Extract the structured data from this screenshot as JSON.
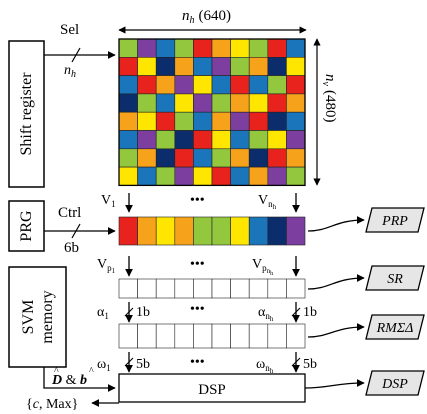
{
  "labels": {
    "shift_register": "Shift register",
    "prg": "PRG",
    "svm_memory_line1": "SVM",
    "svm_memory_line2": "memory",
    "sel": "Sel",
    "n_h_sel": "n",
    "n_h_sel_sub": "h",
    "top_dim_var": "n",
    "top_dim_sub": "h",
    "top_dim_val": "(640)",
    "right_dim_var": "n",
    "right_dim_sub": "v",
    "right_dim_val": "(480)",
    "ctrl": "Ctrl",
    "six_b": "6b",
    "v1": "V",
    "v1_sub": "1",
    "vnh": "V",
    "vnh_sub": "n",
    "vnh_subsub": "h",
    "vp1": "V",
    "vp1_sub": "p",
    "vp1_subsub": "1",
    "vpnh": "V",
    "vpnh_sub": "p",
    "vpnh_subsub": "n",
    "vpnh_subsubsub": "h",
    "alpha1": "α",
    "alpha1_sub": "1",
    "alpha_nh": "α",
    "alpha_nh_sub": "n",
    "alpha_nh_subsub": "h",
    "one_b_left": "1b",
    "one_b_right": "1b",
    "omega1": "ω",
    "omega1_sub": "1",
    "omega_nh": "ω",
    "omega_nh_sub": "n",
    "omega_nh_subsub": "h",
    "five_b_left": "5b",
    "five_b_right": "5b",
    "d_hat": "D",
    "b_hat": "b",
    "amp": " & ",
    "c_max": "{c, Max}",
    "c_max_open": "{",
    "c_max_c": "c",
    "c_max_rest": ", Max}",
    "dsp_block": "DSP",
    "ellipsis": "•••"
  },
  "outputs": {
    "prp": "PRP",
    "sr": "SR",
    "rmsd": "RMΣΔ",
    "dsp": "DSP"
  },
  "colors": {
    "red": "#e8231e",
    "orange": "#f7a21b",
    "yellow": "#ffe600",
    "green": "#93c83e",
    "blue": "#1b75bb",
    "navy": "#0b2d6b",
    "purple": "#7c3fa0",
    "output_fill": "#e6e6e6"
  },
  "pixel_grid": [
    [
      "green",
      "purple",
      "blue",
      "green",
      "red",
      "orange",
      "yellow",
      "green",
      "red",
      "blue"
    ],
    [
      "red",
      "yellow",
      "navy",
      "orange",
      "blue",
      "purple",
      "green",
      "orange",
      "navy",
      "yellow"
    ],
    [
      "blue",
      "red",
      "orange",
      "purple",
      "yellow",
      "blue",
      "red",
      "blue",
      "green",
      "red"
    ],
    [
      "navy",
      "green",
      "blue",
      "yellow",
      "purple",
      "green",
      "orange",
      "yellow",
      "red",
      "orange"
    ],
    [
      "orange",
      "yellow",
      "red",
      "green",
      "blue",
      "orange",
      "purple",
      "red",
      "navy",
      "blue"
    ],
    [
      "blue",
      "purple",
      "green",
      "navy",
      "red",
      "yellow",
      "blue",
      "green",
      "yellow",
      "purple"
    ],
    [
      "green",
      "orange",
      "navy",
      "red",
      "blue",
      "green",
      "orange",
      "navy",
      "red",
      "orange"
    ],
    [
      "yellow",
      "blue",
      "green",
      "purple",
      "yellow",
      "red",
      "blue",
      "orange",
      "purple",
      "green"
    ]
  ],
  "prg_row": [
    "red",
    "orange",
    "yellow",
    "orange",
    "green",
    "green",
    "yellow",
    "blue",
    "navy",
    "purple"
  ]
}
